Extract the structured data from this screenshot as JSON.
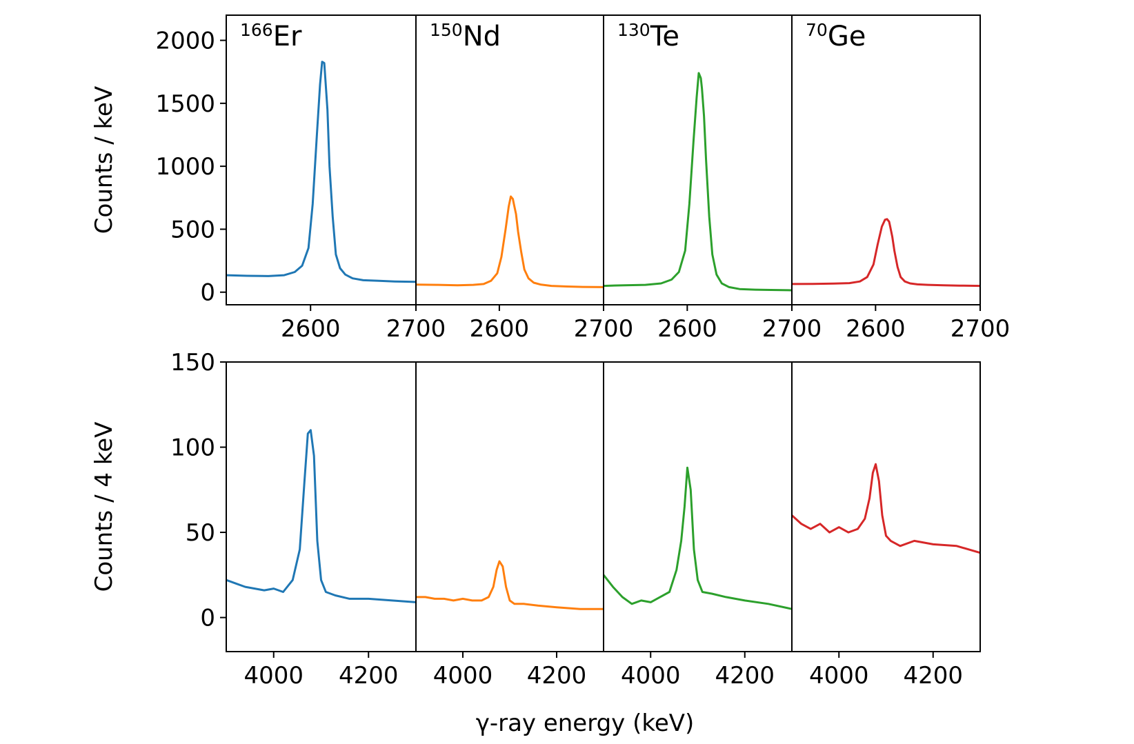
{
  "chart_data": {
    "type": "line",
    "xlabel": "γ-ray energy (keV)",
    "rows": [
      {
        "ylabel": "Counts / keV",
        "ylim": [
          -100,
          2200
        ],
        "yticks": [
          0,
          500,
          1000,
          1500,
          2000
        ],
        "xlim": [
          2520,
          2700
        ],
        "xticks": [
          2600,
          2700
        ],
        "panels": [
          {
            "isotope": "Er",
            "mass": "166",
            "color": "#1f77b4",
            "x": [
              2520,
              2540,
              2560,
              2575,
              2585,
              2592,
              2598,
              2602,
              2606,
              2609,
              2611,
              2613,
              2614,
              2616,
              2618,
              2621,
              2624,
              2628,
              2633,
              2640,
              2650,
              2665,
              2680,
              2700
            ],
            "y": [
              135,
              130,
              128,
              135,
              160,
              210,
              350,
              700,
              1250,
              1650,
              1830,
              1820,
              1700,
              1450,
              1000,
              600,
              300,
              190,
              140,
              110,
              95,
              90,
              85,
              82
            ]
          },
          {
            "isotope": "Nd",
            "mass": "150",
            "color": "#ff7f0e",
            "x": [
              2520,
              2540,
              2560,
              2575,
              2585,
              2592,
              2598,
              2602,
              2606,
              2609,
              2611,
              2613,
              2614,
              2616,
              2618,
              2621,
              2624,
              2628,
              2633,
              2640,
              2650,
              2665,
              2680,
              2700
            ],
            "y": [
              60,
              58,
              55,
              58,
              65,
              90,
              150,
              280,
              500,
              680,
              760,
              740,
              700,
              620,
              480,
              320,
              180,
              110,
              75,
              60,
              50,
              45,
              42,
              40
            ]
          },
          {
            "isotope": "Te",
            "mass": "130",
            "color": "#2ca02c",
            "x": [
              2520,
              2540,
              2560,
              2575,
              2585,
              2592,
              2598,
              2602,
              2606,
              2609,
              2611,
              2613,
              2614,
              2616,
              2618,
              2621,
              2624,
              2628,
              2633,
              2640,
              2650,
              2665,
              2680,
              2700
            ],
            "y": [
              50,
              55,
              58,
              70,
              100,
              160,
              330,
              700,
              1200,
              1550,
              1740,
              1700,
              1620,
              1400,
              1050,
              600,
              300,
              140,
              70,
              40,
              25,
              20,
              18,
              15
            ]
          },
          {
            "isotope": "Ge",
            "mass": "70",
            "color": "#d62728",
            "x": [
              2520,
              2540,
              2560,
              2575,
              2585,
              2592,
              2598,
              2602,
              2606,
              2609,
              2611,
              2613,
              2614,
              2616,
              2618,
              2621,
              2624,
              2628,
              2633,
              2640,
              2650,
              2665,
              2680,
              2700
            ],
            "y": [
              65,
              66,
              68,
              72,
              85,
              120,
              220,
              380,
              520,
              575,
              580,
              560,
              520,
              440,
              330,
              200,
              120,
              85,
              70,
              62,
              58,
              55,
              52,
              50
            ]
          }
        ]
      },
      {
        "ylabel": "Counts / 4 keV",
        "ylim": [
          -20,
          150
        ],
        "yticks": [
          0,
          50,
          100,
          150
        ],
        "xlim": [
          3900,
          4300
        ],
        "xticks": [
          4000,
          4200
        ],
        "panels": [
          {
            "isotope": "Er",
            "mass": "166",
            "color": "#1f77b4",
            "x": [
              3900,
              3920,
              3940,
              3960,
              3980,
              4000,
              4020,
              4040,
              4055,
              4065,
              4072,
              4078,
              4085,
              4092,
              4100,
              4110,
              4130,
              4160,
              4200,
              4250,
              4300
            ],
            "y": [
              22,
              20,
              18,
              17,
              16,
              17,
              15,
              22,
              40,
              80,
              108,
              110,
              95,
              45,
              22,
              15,
              13,
              11,
              11,
              10,
              9
            ]
          },
          {
            "isotope": "Nd",
            "mass": "150",
            "color": "#ff7f0e",
            "x": [
              3900,
              3920,
              3940,
              3960,
              3980,
              4000,
              4020,
              4040,
              4055,
              4065,
              4072,
              4078,
              4085,
              4092,
              4100,
              4110,
              4130,
              4160,
              4200,
              4250,
              4300
            ],
            "y": [
              12,
              12,
              11,
              11,
              10,
              11,
              10,
              10,
              12,
              18,
              28,
              33,
              30,
              18,
              10,
              8,
              8,
              7,
              6,
              5,
              5
            ]
          },
          {
            "isotope": "Te",
            "mass": "130",
            "color": "#2ca02c",
            "x": [
              3900,
              3920,
              3940,
              3960,
              3980,
              4000,
              4020,
              4040,
              4055,
              4065,
              4072,
              4078,
              4085,
              4092,
              4100,
              4110,
              4130,
              4160,
              4200,
              4250,
              4300
            ],
            "y": [
              25,
              18,
              12,
              8,
              10,
              9,
              12,
              15,
              28,
              45,
              65,
              88,
              75,
              40,
              22,
              15,
              14,
              12,
              10,
              8,
              5
            ]
          },
          {
            "isotope": "Ge",
            "mass": "70",
            "color": "#d62728",
            "x": [
              3900,
              3920,
              3940,
              3960,
              3980,
              4000,
              4020,
              4040,
              4055,
              4065,
              4072,
              4078,
              4085,
              4092,
              4100,
              4110,
              4130,
              4160,
              4200,
              4250,
              4300
            ],
            "y": [
              60,
              55,
              52,
              55,
              50,
              53,
              50,
              52,
              58,
              70,
              85,
              90,
              80,
              60,
              48,
              45,
              42,
              45,
              43,
              42,
              38
            ]
          }
        ]
      }
    ]
  }
}
